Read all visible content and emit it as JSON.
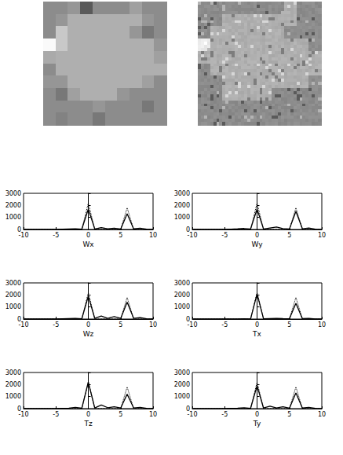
{
  "chart_data": [
    {
      "type": "line",
      "xlabel": "Wx",
      "x": [
        -10,
        -9,
        -8,
        -7,
        -6,
        -5,
        -4,
        -3,
        -2,
        -1,
        0,
        1,
        2,
        3,
        4,
        5,
        6,
        7,
        8,
        9,
        10
      ],
      "xlim": [
        -10,
        10
      ],
      "xticks": [
        -10,
        -5,
        0,
        5,
        10
      ],
      "ylim": [
        0,
        3000
      ],
      "yticks": [
        0,
        1000,
        2000,
        3000
      ],
      "series": [
        {
          "color": "#000000",
          "line_style": "solid",
          "values": [
            0,
            0,
            0,
            0,
            0,
            0,
            20,
            40,
            60,
            30,
            1700,
            40,
            150,
            60,
            100,
            40,
            1300,
            50,
            100,
            20,
            0
          ]
        },
        {
          "color": "#000000",
          "line_style": "dotted",
          "values": [
            0,
            0,
            0,
            0,
            0,
            0,
            0,
            0,
            0,
            0,
            2200,
            0,
            0,
            0,
            0,
            0,
            1800,
            0,
            0,
            0,
            0
          ]
        }
      ]
    },
    {
      "type": "line",
      "xlabel": "Wy",
      "x": [
        -10,
        -9,
        -8,
        -7,
        -6,
        -5,
        -4,
        -3,
        -2,
        -1,
        0,
        1,
        2,
        3,
        4,
        5,
        6,
        7,
        8,
        9,
        10
      ],
      "xlim": [
        -10,
        10
      ],
      "xticks": [
        -10,
        -5,
        0,
        5,
        10
      ],
      "ylim": [
        0,
        3000
      ],
      "yticks": [
        0,
        1000,
        2000,
        3000
      ],
      "series": [
        {
          "color": "#000000",
          "line_style": "solid",
          "values": [
            0,
            0,
            0,
            0,
            0,
            0,
            30,
            50,
            80,
            40,
            1700,
            40,
            120,
            200,
            80,
            40,
            1500,
            60,
            120,
            30,
            0
          ]
        },
        {
          "color": "#000000",
          "line_style": "dotted",
          "values": [
            0,
            0,
            0,
            0,
            0,
            0,
            0,
            0,
            0,
            0,
            2200,
            0,
            0,
            0,
            0,
            0,
            1800,
            0,
            0,
            0,
            0
          ]
        }
      ]
    },
    {
      "type": "line",
      "xlabel": "Wz",
      "x": [
        -10,
        -9,
        -8,
        -7,
        -6,
        -5,
        -4,
        -3,
        -2,
        -1,
        0,
        1,
        2,
        3,
        4,
        5,
        6,
        7,
        8,
        9,
        10
      ],
      "xlim": [
        -10,
        10
      ],
      "xticks": [
        -10,
        -5,
        0,
        5,
        10
      ],
      "ylim": [
        0,
        3000
      ],
      "yticks": [
        0,
        1000,
        2000,
        3000
      ],
      "series": [
        {
          "color": "#000000",
          "line_style": "solid",
          "values": [
            0,
            0,
            0,
            0,
            0,
            0,
            20,
            40,
            60,
            30,
            1900,
            50,
            250,
            60,
            200,
            50,
            1400,
            60,
            120,
            20,
            0
          ]
        },
        {
          "color": "#000000",
          "line_style": "dotted",
          "values": [
            0,
            0,
            0,
            0,
            0,
            0,
            0,
            0,
            0,
            0,
            2200,
            0,
            0,
            0,
            0,
            0,
            1800,
            0,
            0,
            0,
            0
          ]
        }
      ]
    },
    {
      "type": "line",
      "xlabel": "Tx",
      "x": [
        -10,
        -9,
        -8,
        -7,
        -6,
        -5,
        -4,
        -3,
        -2,
        -1,
        0,
        1,
        2,
        3,
        4,
        5,
        6,
        7,
        8,
        9,
        10
      ],
      "xlim": [
        -10,
        10
      ],
      "xticks": [
        -10,
        -5,
        0,
        5,
        10
      ],
      "ylim": [
        0,
        3000
      ],
      "yticks": [
        0,
        1000,
        2000,
        3000
      ],
      "series": [
        {
          "color": "#000000",
          "line_style": "solid",
          "values": [
            0,
            0,
            0,
            0,
            0,
            0,
            0,
            10,
            20,
            10,
            2100,
            20,
            40,
            60,
            40,
            30,
            1300,
            40,
            60,
            10,
            0
          ]
        },
        {
          "color": "#000000",
          "line_style": "dotted",
          "values": [
            0,
            0,
            0,
            0,
            0,
            0,
            0,
            0,
            0,
            0,
            2200,
            0,
            0,
            0,
            0,
            0,
            1800,
            0,
            0,
            0,
            0
          ]
        }
      ]
    },
    {
      "type": "line",
      "xlabel": "Tz",
      "x": [
        -10,
        -9,
        -8,
        -7,
        -6,
        -5,
        -4,
        -3,
        -2,
        -1,
        0,
        1,
        2,
        3,
        4,
        5,
        6,
        7,
        8,
        9,
        10
      ],
      "xlim": [
        -10,
        10
      ],
      "xticks": [
        -10,
        -5,
        0,
        5,
        10
      ],
      "ylim": [
        0,
        3000
      ],
      "yticks": [
        0,
        1000,
        2000,
        3000
      ],
      "series": [
        {
          "color": "#000000",
          "line_style": "solid",
          "values": [
            0,
            0,
            0,
            0,
            0,
            0,
            20,
            40,
            100,
            40,
            2200,
            60,
            300,
            80,
            150,
            50,
            1200,
            60,
            100,
            20,
            0
          ]
        },
        {
          "color": "#000000",
          "line_style": "dotted",
          "values": [
            0,
            0,
            0,
            0,
            0,
            0,
            0,
            0,
            0,
            0,
            2200,
            0,
            0,
            0,
            0,
            0,
            1800,
            0,
            0,
            0,
            0
          ]
        }
      ]
    },
    {
      "type": "line",
      "xlabel": "Ty",
      "x": [
        -10,
        -9,
        -8,
        -7,
        -6,
        -5,
        -4,
        -3,
        -2,
        -1,
        0,
        1,
        2,
        3,
        4,
        5,
        6,
        7,
        8,
        9,
        10
      ],
      "xlim": [
        -10,
        10
      ],
      "xticks": [
        -10,
        -5,
        0,
        5,
        10
      ],
      "ylim": [
        0,
        3000
      ],
      "yticks": [
        0,
        1000,
        2000,
        3000
      ],
      "series": [
        {
          "color": "#000000",
          "line_style": "solid",
          "values": [
            0,
            0,
            0,
            0,
            0,
            0,
            20,
            40,
            80,
            30,
            1900,
            50,
            200,
            60,
            150,
            40,
            1300,
            50,
            100,
            20,
            0
          ]
        },
        {
          "color": "#000000",
          "line_style": "dotted",
          "values": [
            0,
            0,
            0,
            0,
            0,
            0,
            0,
            0,
            0,
            0,
            2200,
            0,
            0,
            0,
            0,
            0,
            1800,
            0,
            0,
            0,
            0
          ]
        }
      ]
    }
  ]
}
